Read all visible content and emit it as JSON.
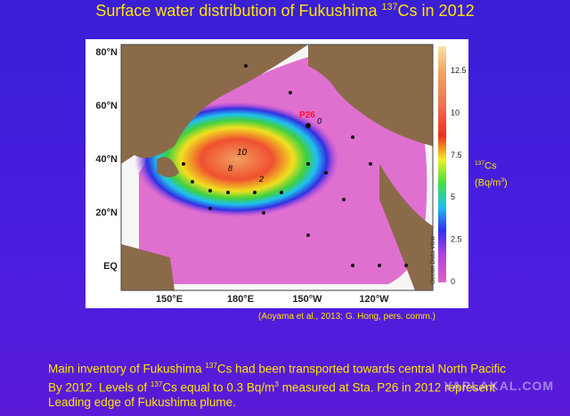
{
  "header": {
    "title": {
      "before": "Surface water distribution of Fukushima ",
      "sup": "137",
      "after": "Cs in 2012"
    }
  },
  "map": {
    "lat_labels": [
      "80°N",
      "60°N",
      "40°N",
      "20°N",
      "EQ"
    ],
    "lon_labels": [
      "150°E",
      "180°E",
      "150°W",
      "120°W"
    ],
    "station": "P26",
    "contours": [
      "10",
      "8",
      "2",
      "0"
    ],
    "colorbar": {
      "ticks": [
        "12.5",
        "10",
        "7.5",
        "5",
        "2.5",
        "0"
      ],
      "label": {
        "sup": "137",
        "unit": "Cs",
        "line2_before": "(Bq/m",
        "line2_sup": "3",
        "line2_after": ")"
      }
    },
    "credit": "Ocean Data View"
  },
  "citation": "(Aoyama et al., 2013; G. Hong, pers. comm.)",
  "body": {
    "line1": {
      "before": "Main inventory of Fukushima ",
      "sup": "137",
      "after": "Cs had been transported towards central North Pacific"
    },
    "line2": {
      "before": "By 2012. Levels of ",
      "sup": "137",
      "mid": "Cs equal to 0.3 Bq/m",
      "sup2": "3",
      "after": " measured at Sta. P26 in 2012 represent"
    },
    "line3": "Leading edge of Fukushima plume."
  },
  "watermark": "YAPLAKAL.COM"
}
